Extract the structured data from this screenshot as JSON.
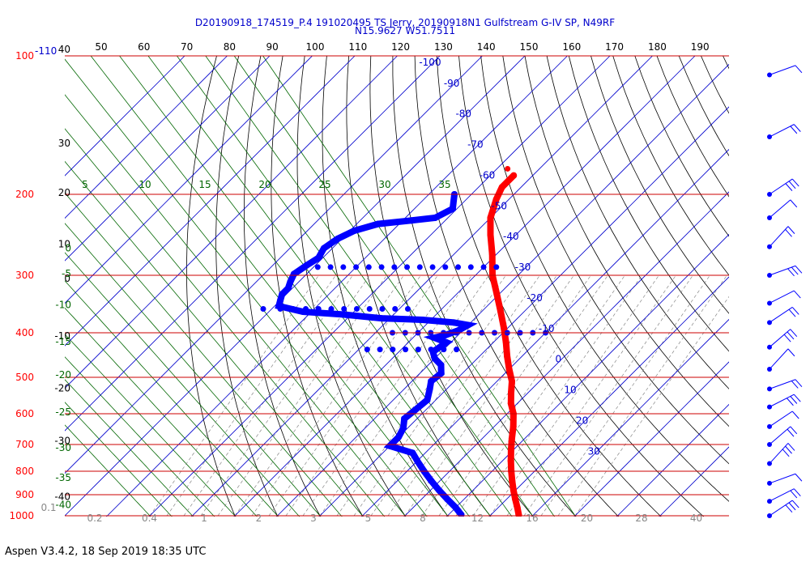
{
  "chart_data": {
    "type": "skew-t",
    "title": "D20190918_174519_P.4 191020495 TS Jerry, 20190918N1 Gulfstream G-IV SP, N49RF",
    "subtitle": "N15.9627 W51.7511",
    "footer": "Aspen V3.4.2, 18 Sep 2019  18:35 UTC",
    "pressure_axis": {
      "scale": "log",
      "range_hPa": [
        1000,
        100
      ],
      "labels": [
        {
          "p": 100,
          "text": "100"
        },
        {
          "p": 200,
          "text": "200"
        },
        {
          "p": 300,
          "text": "300"
        },
        {
          "p": 400,
          "text": "400"
        },
        {
          "p": 500,
          "text": "500"
        },
        {
          "p": 600,
          "text": "600"
        },
        {
          "p": 700,
          "text": "700"
        },
        {
          "p": 800,
          "text": "800"
        },
        {
          "p": 900,
          "text": "900"
        },
        {
          "p": 1000,
          "text": "1000"
        }
      ],
      "top_extra_label": "-110",
      "colors": {
        "pressure": "#ff0000",
        "extra": "#0000cc"
      }
    },
    "altitude_labels": [
      {
        "p": 100,
        "text": "40"
      },
      {
        "p": 160,
        "text": "30"
      },
      {
        "p": 205,
        "text": "20"
      },
      {
        "p": 265,
        "text": "10"
      },
      {
        "p": 315,
        "text": "0"
      },
      {
        "p": 420,
        "text": "-10"
      },
      {
        "p": 545,
        "text": "-20"
      },
      {
        "p": 710,
        "text": "-30"
      },
      {
        "p": 940,
        "text": "-40"
      }
    ],
    "top_axis_labels": [
      "50",
      "60",
      "70",
      "80",
      "90",
      "100",
      "110",
      "120",
      "130",
      "140",
      "150",
      "160",
      "170",
      "180",
      "190"
    ],
    "temperature_isotherms": [
      {
        "t": -100,
        "text": "-100"
      },
      {
        "t": -90,
        "text": "-90"
      },
      {
        "t": -80,
        "text": "-80"
      },
      {
        "t": -70,
        "text": "-70"
      },
      {
        "t": -60,
        "text": "-60"
      },
      {
        "t": -50,
        "text": "-50"
      },
      {
        "t": -40,
        "text": "-40"
      },
      {
        "t": -30,
        "text": "-30"
      },
      {
        "t": -20,
        "text": "-20"
      },
      {
        "t": -10,
        "text": "-10"
      },
      {
        "t": 0,
        "text": "0"
      },
      {
        "t": 10,
        "text": "10"
      },
      {
        "t": 20,
        "text": "20"
      },
      {
        "t": 30,
        "text": "30"
      }
    ],
    "moist_adiabats": [
      {
        "v": 5,
        "text": "5"
      },
      {
        "v": 10,
        "text": "10"
      },
      {
        "v": 15,
        "text": "15"
      },
      {
        "v": 20,
        "text": "20"
      },
      {
        "v": 25,
        "text": "25"
      },
      {
        "v": 30,
        "text": "30"
      },
      {
        "v": 35,
        "text": "35"
      }
    ],
    "left_green_labels": [
      {
        "p": 260,
        "text": "0"
      },
      {
        "p": 295,
        "text": "-5"
      },
      {
        "p": 345,
        "text": "-10"
      },
      {
        "p": 415,
        "text": "-15"
      },
      {
        "p": 490,
        "text": "-20"
      },
      {
        "p": 590,
        "text": "-25"
      },
      {
        "p": 705,
        "text": "-30"
      },
      {
        "p": 820,
        "text": "-35"
      },
      {
        "p": 940,
        "text": "-40"
      }
    ],
    "mixing_ratio_labels": [
      "0.1",
      "0.2",
      "0.4",
      "1",
      "2",
      "3",
      "5",
      "8",
      "12",
      "16",
      "20",
      "28",
      "40"
    ],
    "series": [
      {
        "name": "Temperature",
        "color": "#ff0000",
        "points": [
          {
            "p": 182,
            "t": -54.5
          },
          {
            "p": 193,
            "t": -54.5
          },
          {
            "p": 205,
            "t": -53
          },
          {
            "p": 225,
            "t": -50
          },
          {
            "p": 245,
            "t": -46
          },
          {
            "p": 270,
            "t": -41
          },
          {
            "p": 300,
            "t": -36
          },
          {
            "p": 330,
            "t": -30.5
          },
          {
            "p": 360,
            "t": -25.5
          },
          {
            "p": 390,
            "t": -21
          },
          {
            "p": 420,
            "t": -17
          },
          {
            "p": 450,
            "t": -13.5
          },
          {
            "p": 480,
            "t": -10
          },
          {
            "p": 510,
            "t": -6.5
          },
          {
            "p": 540,
            "t": -4
          },
          {
            "p": 570,
            "t": -1.5
          },
          {
            "p": 600,
            "t": 1.5
          },
          {
            "p": 640,
            "t": 4.5
          },
          {
            "p": 680,
            "t": 7
          },
          {
            "p": 720,
            "t": 9.5
          },
          {
            "p": 760,
            "t": 12
          },
          {
            "p": 800,
            "t": 14.5
          },
          {
            "p": 840,
            "t": 17
          },
          {
            "p": 880,
            "t": 19.5
          },
          {
            "p": 920,
            "t": 22
          },
          {
            "p": 960,
            "t": 24.5
          },
          {
            "p": 995,
            "t": 26.5
          }
        ],
        "outlier": {
          "p": 176,
          "t": -57.5
        }
      },
      {
        "name": "Dewpoint",
        "color": "#0000ff",
        "points": [
          {
            "p": 200,
            "t": -64
          },
          {
            "p": 215,
            "t": -61
          },
          {
            "p": 225,
            "t": -63
          },
          {
            "p": 228,
            "t": -68
          },
          {
            "p": 232,
            "t": -75
          },
          {
            "p": 240,
            "t": -79
          },
          {
            "p": 250,
            "t": -81
          },
          {
            "p": 262,
            "t": -82
          },
          {
            "p": 275,
            "t": -81
          },
          {
            "p": 285,
            "t": -82
          },
          {
            "p": 298,
            "t": -83
          },
          {
            "p": 310,
            "t": -82
          },
          {
            "p": 320,
            "t": -81
          },
          {
            "p": 330,
            "t": -81
          },
          {
            "p": 340,
            "t": -80
          },
          {
            "p": 350,
            "t": -79
          },
          {
            "p": 360,
            "t": -72
          },
          {
            "p": 365,
            "t": -62
          },
          {
            "p": 372,
            "t": -52
          },
          {
            "p": 375,
            "t": -42
          },
          {
            "p": 380,
            "t": -34
          },
          {
            "p": 385,
            "t": -30
          },
          {
            "p": 395,
            "t": -31
          },
          {
            "p": 405,
            "t": -33
          },
          {
            "p": 410,
            "t": -35
          },
          {
            "p": 420,
            "t": -31
          },
          {
            "p": 440,
            "t": -32
          },
          {
            "p": 455,
            "t": -30
          },
          {
            "p": 470,
            "t": -27
          },
          {
            "p": 490,
            "t": -25
          },
          {
            "p": 510,
            "t": -25.5
          },
          {
            "p": 530,
            "t": -24
          },
          {
            "p": 560,
            "t": -22
          },
          {
            "p": 590,
            "t": -22.5
          },
          {
            "p": 615,
            "t": -23
          },
          {
            "p": 645,
            "t": -21
          },
          {
            "p": 675,
            "t": -20
          },
          {
            "p": 705,
            "t": -20
          },
          {
            "p": 730,
            "t": -13
          },
          {
            "p": 760,
            "t": -10
          },
          {
            "p": 800,
            "t": -6
          },
          {
            "p": 840,
            "t": -2
          },
          {
            "p": 880,
            "t": 2
          },
          {
            "p": 920,
            "t": 6
          },
          {
            "p": 960,
            "t": 10
          },
          {
            "p": 995,
            "t": 13
          }
        ],
        "scatter": [
          {
            "p": 288,
            "t": [
              -82,
              -79,
              -76,
              -73,
              -70,
              -67,
              -64,
              -61,
              -58,
              -55,
              -52,
              -49,
              -46,
              -43,
              -40,
              -37
            ]
          },
          {
            "p": 355,
            "t": [
              -82,
              -78,
              -75,
              -72,
              -69,
              -66,
              -63,
              -60,
              -57,
              -54,
              -51,
              -48
            ]
          },
          {
            "p": 400,
            "t": [
              -46,
              -43,
              -40,
              -37,
              -34,
              -31,
              -28,
              -25,
              -22,
              -19,
              -16,
              -13,
              -10
            ]
          },
          {
            "p": 435,
            "t": [
              -48,
              -45,
              -42,
              -39,
              -36,
              -33,
              -30,
              -27
            ]
          }
        ]
      }
    ],
    "wind_barbs": {
      "color": "#0000ff",
      "levels_hPa": [
        110,
        150,
        200,
        225,
        260,
        300,
        345,
        380,
        430,
        480,
        530,
        580,
        640,
        700,
        770,
        850,
        930,
        1000
      ]
    },
    "colors": {
      "pressure_line": "#cc0000",
      "isotherm": "#0000cc",
      "dry_adiabat": "#000000",
      "moist_adiabat": "#006600",
      "mixing_ratio": "#888888",
      "title": "#0000cc"
    }
  }
}
